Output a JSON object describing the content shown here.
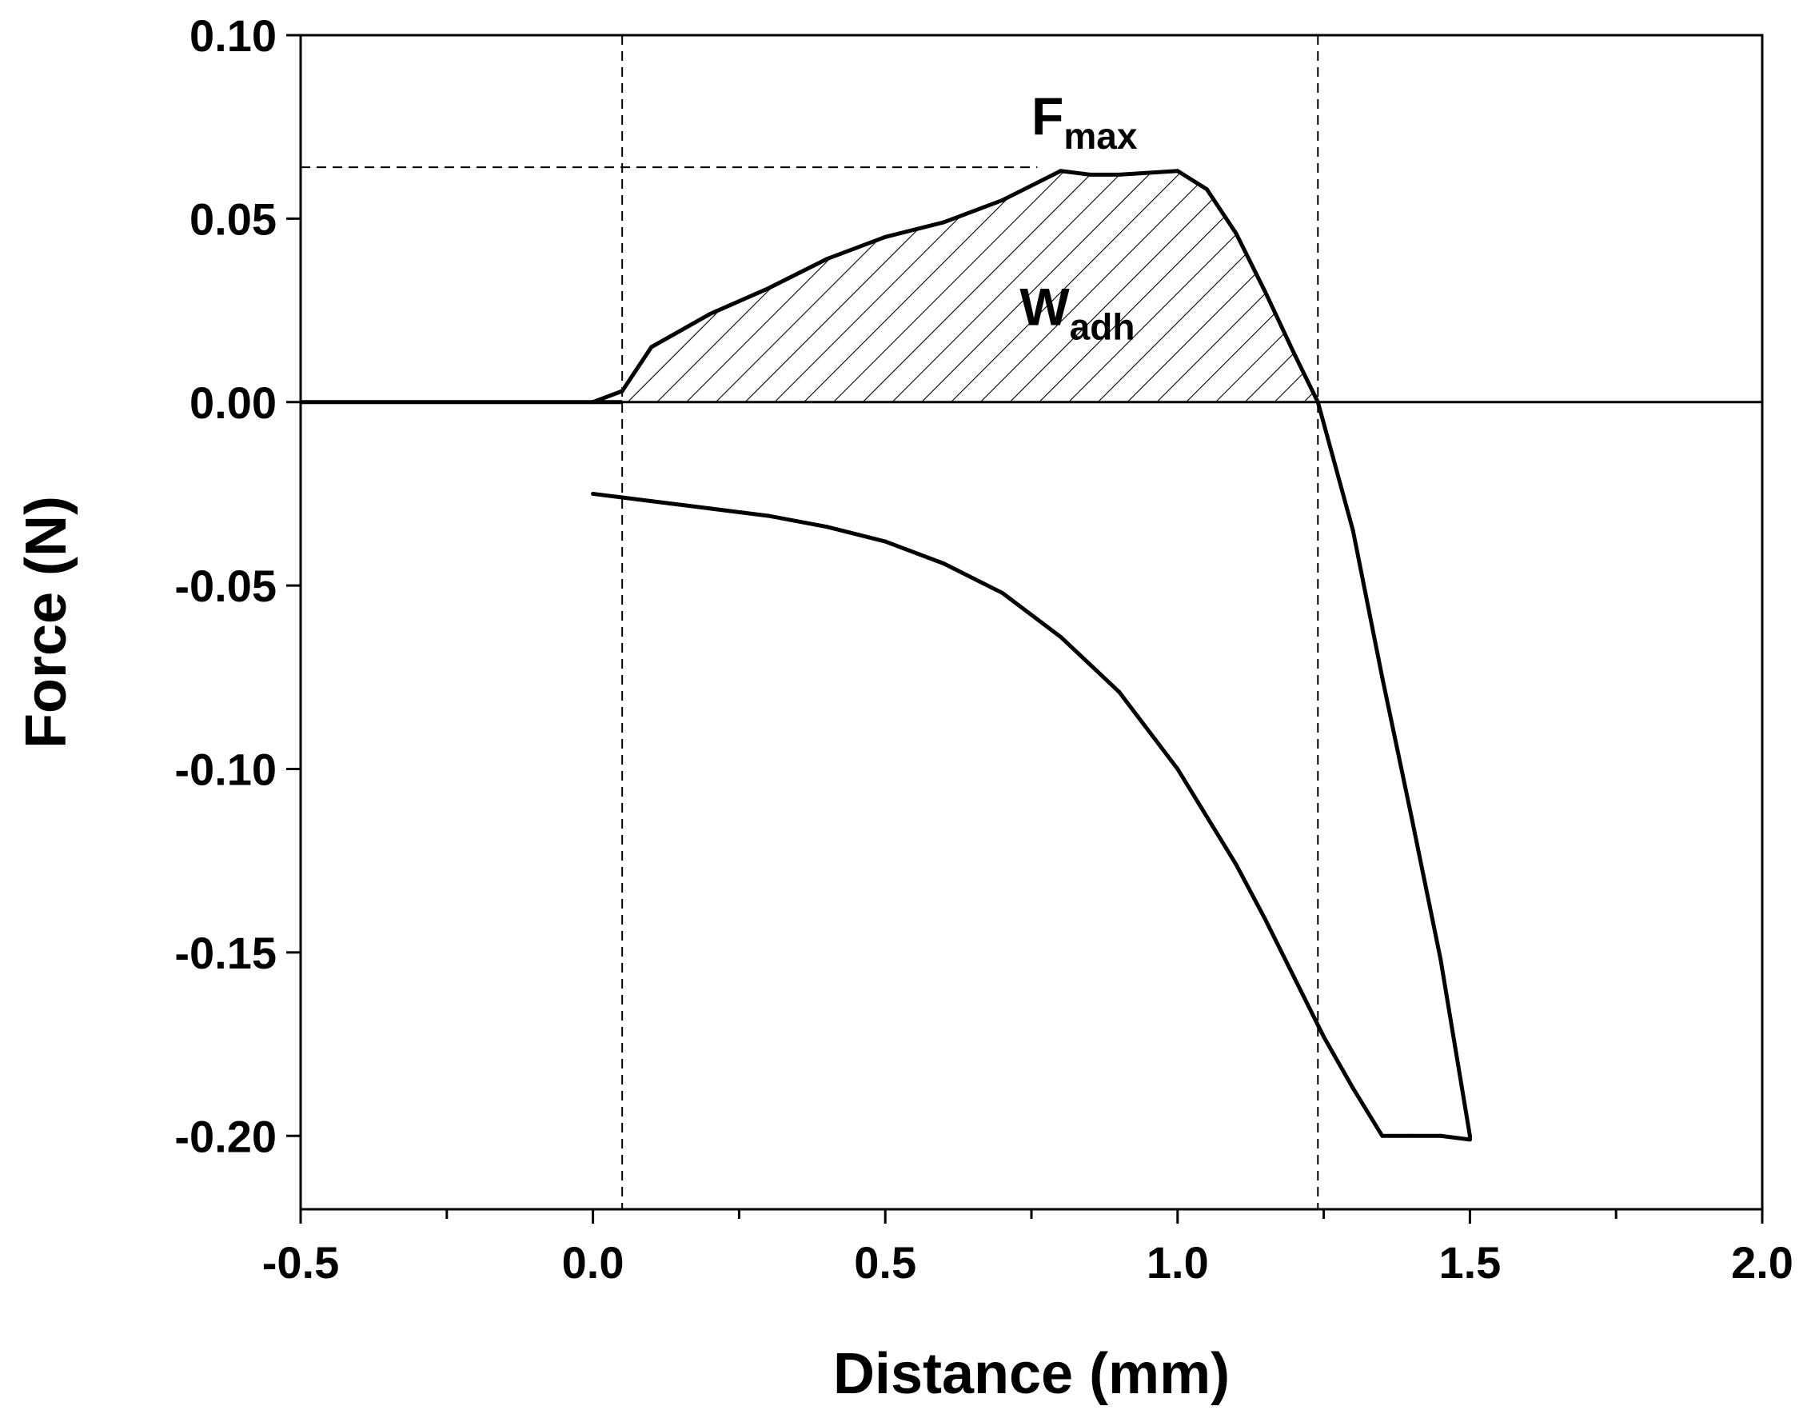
{
  "chart_data": {
    "type": "line",
    "xlabel": "Distance (mm)",
    "ylabel": "Force (N)",
    "xlim": [
      -0.5,
      2.0
    ],
    "ylim": [
      -0.22,
      0.1
    ],
    "xticks": [
      -0.5,
      0.0,
      0.5,
      1.0,
      1.5,
      2.0
    ],
    "xtick_labels": [
      "-0.5",
      "0.0",
      "0.5",
      "1.0",
      "1.5",
      "2.0"
    ],
    "xminor_ticks": [
      -0.25,
      0.25,
      0.75,
      1.25,
      1.75
    ],
    "yticks": [
      0.1,
      0.05,
      0.0,
      -0.05,
      -0.1,
      -0.15,
      -0.2
    ],
    "ytick_labels": [
      "0.10",
      "0.05",
      "0.00",
      "-0.05",
      "-0.10",
      "-0.15",
      "-0.20"
    ],
    "grid": false,
    "baseline_y": 0.0,
    "reference_lines": {
      "vertical_x": [
        0.05,
        1.24
      ],
      "horizontal_y": 0.064,
      "horizontal_x_range": [
        -0.5,
        0.76
      ]
    },
    "series": [
      {
        "x": [
          0.0,
          0.05,
          0.1,
          0.2,
          0.3,
          0.4,
          0.5,
          0.6,
          0.7,
          0.8,
          0.85,
          0.9,
          1.0,
          1.05,
          1.1,
          1.15,
          1.2,
          1.24,
          1.3,
          1.35,
          1.4,
          1.45,
          1.5,
          1.5,
          1.45,
          1.4,
          1.35,
          1.3,
          1.25,
          1.2,
          1.15,
          1.1,
          1.0,
          0.9,
          0.8,
          0.7,
          0.6,
          0.5,
          0.4,
          0.3,
          0.2,
          0.1,
          0.05,
          0.0
        ],
        "y": [
          0.0,
          0.003,
          0.015,
          0.024,
          0.031,
          0.039,
          0.045,
          0.049,
          0.055,
          0.063,
          0.062,
          0.062,
          0.063,
          0.058,
          0.046,
          0.03,
          0.013,
          0.0,
          -0.035,
          -0.075,
          -0.113,
          -0.152,
          -0.2,
          -0.201,
          -0.2,
          -0.2,
          -0.2,
          -0.187,
          -0.173,
          -0.157,
          -0.141,
          -0.126,
          -0.1,
          -0.079,
          -0.064,
          -0.052,
          -0.044,
          -0.038,
          -0.034,
          -0.031,
          -0.029,
          -0.027,
          -0.026,
          -0.025
        ]
      }
    ],
    "pre_contact_baseline": {
      "x": [
        -0.5,
        0.05
      ],
      "y": [
        0.0,
        0.0
      ]
    },
    "shaded_region": {
      "label": "W",
      "label_sub": "adh",
      "x_range": [
        0.05,
        1.24
      ]
    },
    "annotations": [
      {
        "text": "F",
        "sub": "max",
        "x": 0.75,
        "y": 0.073
      },
      {
        "text": "W",
        "sub": "adh",
        "x": 0.73,
        "y": 0.021
      }
    ]
  }
}
